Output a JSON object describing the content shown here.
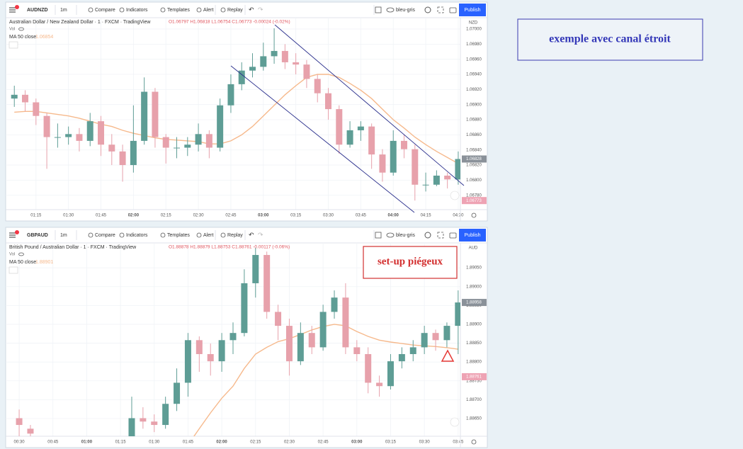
{
  "side_note": "exemple avec canal étroit",
  "chart_data": [
    {
      "type": "candlestick",
      "toolbar": {
        "symbol": "AUDNZD",
        "interval": "1m",
        "buttons": [
          "Compare",
          "Indicators",
          "Templates",
          "Alert",
          "Replay"
        ],
        "layout": "bleu-gris",
        "publish": "Publish"
      },
      "title": "Australian Dollar / New Zealand Dollar · 1 · FXCM · TradingView",
      "ohlc_legend": "O1.06797 H1.06818 L1.06754 C1.06773 -0.00024 (-0.02%)",
      "volume_label": "Vol",
      "ma_legend": {
        "name": "MA 50 close",
        "value": 1.06854
      },
      "currency": "NZD",
      "up_color": "#5e9d95",
      "down_color": "#e7a1ab",
      "x": [
        "01:05",
        "01:10",
        "01:15",
        "01:20",
        "01:25",
        "01:30",
        "01:35",
        "01:40",
        "01:45",
        "01:50",
        "01:55",
        "02:00",
        "02:05",
        "02:10",
        "02:15",
        "02:20",
        "02:25",
        "02:30",
        "02:35",
        "02:40",
        "02:45",
        "02:50",
        "02:55",
        "03:00",
        "03:05",
        "03:10",
        "03:15",
        "03:20",
        "03:25",
        "03:30",
        "03:35",
        "03:40",
        "03:45",
        "03:50",
        "03:55",
        "04:00",
        "04:05",
        "04:10",
        "04:15",
        "04:20",
        "04:25",
        "04:30"
      ],
      "open": [
        1.06908,
        1.06913,
        1.06903,
        1.06885,
        1.06857,
        1.06857,
        1.06861,
        1.06852,
        1.06878,
        1.06847,
        1.06838,
        1.0682,
        1.06852,
        1.06917,
        1.06857,
        1.06843,
        1.06843,
        1.06847,
        1.06861,
        1.06843,
        1.06899,
        1.06927,
        1.06945,
        1.0695,
        1.06964,
        1.06971,
        1.06956,
        1.06953,
        1.06934,
        1.06915,
        1.06894,
        1.06847,
        1.06866,
        1.06871,
        1.06834,
        1.0681,
        1.06852,
        1.06841,
        1.06794,
        1.06794,
        1.06806,
        1.06801
      ],
      "high": [
        1.06925,
        1.06919,
        1.06908,
        1.06889,
        1.06875,
        1.06871,
        1.06869,
        1.06889,
        1.06885,
        1.06861,
        1.06847,
        1.06899,
        1.06936,
        1.06922,
        1.06861,
        1.06857,
        1.06857,
        1.06875,
        1.06866,
        1.06908,
        1.0694,
        1.06956,
        1.06968,
        1.06982,
        1.07001,
        1.0698,
        1.06968,
        1.06959,
        1.0694,
        1.06922,
        1.06899,
        1.06878,
        1.06878,
        1.06875,
        1.06841,
        1.06866,
        1.0686,
        1.06847,
        1.0681,
        1.06813,
        1.0681,
        1.06838
      ],
      "low": [
        1.06897,
        1.06891,
        1.06873,
        1.06815,
        1.06843,
        1.06847,
        1.06838,
        1.06845,
        1.06832,
        1.0682,
        1.06798,
        1.0681,
        1.06847,
        1.06843,
        1.06822,
        1.06829,
        1.06832,
        1.06838,
        1.06829,
        1.06838,
        1.06889,
        1.06919,
        1.06936,
        1.06945,
        1.06954,
        1.06947,
        1.0694,
        1.06922,
        1.06903,
        1.0688,
        1.06835,
        1.06843,
        1.06852,
        1.06815,
        1.06798,
        1.06806,
        1.06829,
        1.06773,
        1.06785,
        1.06792,
        1.06789,
        1.06794
      ],
      "close": [
        1.06913,
        1.06903,
        1.06885,
        1.06857,
        1.06857,
        1.06861,
        1.06852,
        1.06878,
        1.06847,
        1.06838,
        1.0682,
        1.06852,
        1.06917,
        1.06857,
        1.06843,
        1.06843,
        1.06847,
        1.06861,
        1.06843,
        1.06899,
        1.06927,
        1.06945,
        1.0695,
        1.06964,
        1.06971,
        1.06956,
        1.06953,
        1.06934,
        1.06915,
        1.06894,
        1.06847,
        1.06866,
        1.06871,
        1.06834,
        1.0681,
        1.06852,
        1.06841,
        1.06794,
        1.06794,
        1.06806,
        1.06801,
        1.06828
      ],
      "ma": {
        "color": "#f6b98c",
        "values": [
          1.0689,
          1.06891,
          1.06891,
          1.06889,
          1.06887,
          1.06885,
          1.06882,
          1.06878,
          1.06874,
          1.06871,
          1.06866,
          1.06862,
          1.06859,
          1.06856,
          1.06854,
          1.06853,
          1.06852,
          1.06851,
          1.06848,
          1.06848,
          1.06852,
          1.0686,
          1.06871,
          1.06885,
          1.06899,
          1.06913,
          1.06925,
          1.06936,
          1.0694,
          1.0694,
          1.06936,
          1.06928,
          1.06919,
          1.06908,
          1.06894,
          1.0688,
          1.06869,
          1.06857,
          1.06847,
          1.06838,
          1.0683,
          1.06822
        ]
      },
      "xlim": [
        "01:01",
        "04:31"
      ],
      "xticks": [
        "01:15",
        "01:30",
        "01:45",
        "02:00",
        "02:15",
        "02:30",
        "02:45",
        "03:00",
        "03:15",
        "03:30",
        "03:45",
        "04:00",
        "04:15",
        "04:30"
      ],
      "ylim": [
        1.06761,
        1.07015
      ],
      "yticks": [
        {
          "value": 1.0678,
          "label": "1.06780"
        },
        {
          "value": 1.068,
          "label": "1.06800"
        },
        {
          "value": 1.0682,
          "label": "1.06820"
        },
        {
          "value": 1.0684,
          "label": "1.06840"
        },
        {
          "value": 1.0686,
          "label": "1.06860"
        },
        {
          "value": 1.0688,
          "label": "1.06880"
        },
        {
          "value": 1.069,
          "label": "1.06900"
        },
        {
          "value": 1.0692,
          "label": "1.06920"
        },
        {
          "value": 1.0694,
          "label": "1.06940"
        },
        {
          "value": 1.0696,
          "label": "1.06960"
        },
        {
          "value": 1.0698,
          "label": "1.06980"
        },
        {
          "value": 1.07,
          "label": "1.07000"
        }
      ],
      "grid": true,
      "price_tags": [
        {
          "value": 1.06828,
          "color": "#8a9199"
        },
        {
          "value": 1.06773,
          "color": "#eea3b4"
        }
      ]
    },
    {
      "type": "candlestick",
      "toolbar": {
        "symbol": "GBPAUD",
        "interval": "1m",
        "buttons": [
          "Compare",
          "Indicators",
          "Templates",
          "Alert",
          "Replay"
        ],
        "layout": "bleu-gris",
        "publish": "Publish"
      },
      "title": "British Pound / Australian Dollar · 1 · FXCM · TradingView",
      "ohlc_legend": "O1.88878 H1.88879 L1.88753 C1.88761 -0.00117 (-0.06%)",
      "volume_label": "Vol",
      "ma_legend": {
        "name": "MA 50 close",
        "value": 1.88901
      },
      "currency": "AUD",
      "annotation": "set-up piégeux",
      "up_color": "#5e9d95",
      "down_color": "#e7a1ab",
      "x": [
        "00:30",
        "00:35",
        "01:20",
        "01:25",
        "01:30",
        "01:35",
        "01:40",
        "01:45",
        "01:50",
        "01:55",
        "02:00",
        "02:05",
        "02:10",
        "02:15",
        "02:20",
        "02:25",
        "02:30",
        "02:35",
        "02:40",
        "02:45",
        "02:50",
        "02:55",
        "03:00",
        "03:05",
        "03:10",
        "03:15",
        "03:20",
        "03:25",
        "03:30",
        "03:35",
        "03:40",
        "03:45"
      ],
      "open": [
        1.88651,
        1.88623,
        1.88586,
        1.88651,
        1.88642,
        1.88633,
        1.88689,
        1.88745,
        1.88858,
        1.88821,
        1.88802,
        1.88858,
        1.88877,
        1.89009,
        1.89084,
        1.88933,
        1.88896,
        1.88802,
        1.88877,
        1.88839,
        1.88933,
        1.88971,
        1.88839,
        1.88821,
        1.88745,
        1.88736,
        1.88802,
        1.88821,
        1.88839,
        1.88877,
        1.88858,
        1.88896
      ],
      "high": [
        1.88674,
        1.88633,
        1.88708,
        1.8868,
        1.88661,
        1.88708,
        1.88783,
        1.88877,
        1.88868,
        1.88849,
        1.88877,
        1.88905,
        1.89046,
        1.89103,
        1.89093,
        1.88952,
        1.88915,
        1.88905,
        1.88896,
        1.88952,
        1.8899,
        1.89009,
        1.88858,
        1.88839,
        1.88764,
        1.88821,
        1.88839,
        1.88858,
        1.88896,
        1.88886,
        1.88905,
        1.8899
      ],
      "low": [
        1.88595,
        1.88586,
        1.88576,
        1.88623,
        1.88614,
        1.88623,
        1.8867,
        1.88708,
        1.88774,
        1.88764,
        1.88774,
        1.88821,
        1.88868,
        1.88971,
        1.88915,
        1.88858,
        1.88764,
        1.88792,
        1.88821,
        1.8883,
        1.88915,
        1.88821,
        1.88802,
        1.88717,
        1.88708,
        1.88727,
        1.88783,
        1.88802,
        1.88821,
        1.8883,
        1.88839,
        1.88821
      ],
      "close": [
        1.88633,
        1.8861,
        1.88651,
        1.88642,
        1.88633,
        1.88689,
        1.88745,
        1.88858,
        1.88821,
        1.88802,
        1.88858,
        1.88877,
        1.89009,
        1.89084,
        1.88933,
        1.88896,
        1.88802,
        1.88877,
        1.88839,
        1.88933,
        1.88971,
        1.88839,
        1.88821,
        1.88745,
        1.88736,
        1.88802,
        1.88821,
        1.88839,
        1.88877,
        1.88858,
        1.88896,
        1.88958
      ],
      "ma": {
        "color": "#f6b98c",
        "values": [
          null,
          null,
          null,
          null,
          null,
          null,
          null,
          1.8858,
          1.88623,
          1.88665,
          1.88704,
          1.88736,
          1.88783,
          1.88821,
          1.88839,
          1.88854,
          1.88862,
          1.88873,
          1.88885,
          1.88894,
          1.889,
          1.88896,
          1.88881,
          1.88868,
          1.88858,
          1.88853,
          1.88849,
          1.88845,
          1.88843,
          1.88841,
          1.88838,
          1.88834
        ]
      },
      "xlim": [
        "00:24",
        "03:46"
      ],
      "xticks": [
        "00:30",
        "00:45",
        "01:00",
        "01:15",
        "01:30",
        "01:45",
        "02:00",
        "02:15",
        "02:30",
        "02:45",
        "03:00",
        "03:15",
        "03:30",
        "03:45"
      ],
      "ylim": [
        1.88603,
        1.89116
      ],
      "yticks": [
        {
          "value": 1.8865,
          "label": "1.88650"
        },
        {
          "value": 1.887,
          "label": "1.88700"
        },
        {
          "value": 1.8875,
          "label": "1.88750"
        },
        {
          "value": 1.888,
          "label": "1.88800"
        },
        {
          "value": 1.8885,
          "label": "1.88850"
        },
        {
          "value": 1.889,
          "label": "1.88900"
        },
        {
          "value": 1.8895,
          "label": "1.88950"
        },
        {
          "value": 1.89,
          "label": "1.89000"
        },
        {
          "value": 1.8905,
          "label": "1.89050"
        }
      ],
      "grid": true,
      "price_tags": [
        {
          "value": 1.88958,
          "color": "#8a9199"
        },
        {
          "value": 1.88761,
          "color": "#eea3b4"
        }
      ]
    }
  ]
}
